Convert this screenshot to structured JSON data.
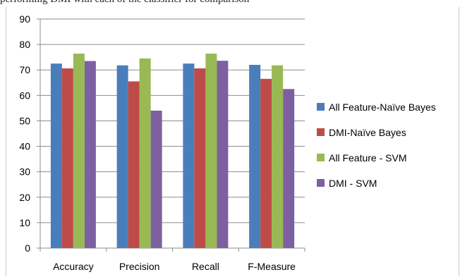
{
  "caption": "performing DMI with each of the classifier for comparison",
  "chart_data": {
    "type": "bar",
    "categories": [
      "Accuracy",
      "Precision",
      "Recall",
      "F-Measure"
    ],
    "series": [
      {
        "name": "All Feature-Naïve Bayes",
        "color": "#4a7ebb",
        "values": [
          72.5,
          71.8,
          72.5,
          72.0
        ]
      },
      {
        "name": "DMI-Naïve Bayes",
        "color": "#be4b48",
        "values": [
          70.6,
          65.5,
          70.6,
          66.5
        ]
      },
      {
        "name": "All Feature - SVM",
        "color": "#98b954",
        "values": [
          76.4,
          74.5,
          76.4,
          71.8
        ]
      },
      {
        "name": "DMI - SVM",
        "color": "#7d60a0",
        "values": [
          73.5,
          54.0,
          73.6,
          62.5
        ]
      }
    ],
    "yticks": [
      0,
      10,
      20,
      30,
      40,
      50,
      60,
      70,
      80,
      90
    ],
    "ylim": [
      0,
      90
    ],
    "grid": true,
    "legend_position": "right"
  }
}
